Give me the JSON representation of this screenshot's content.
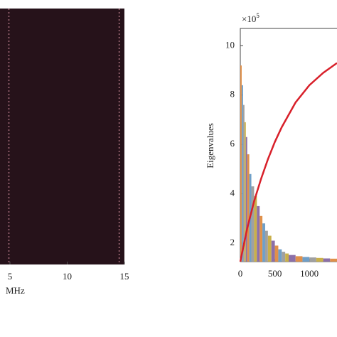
{
  "chart_data": [
    {
      "type": "image",
      "xlabel": "MHz",
      "xlim": [
        4.13,
        15
      ],
      "xticks": [
        5,
        10,
        15
      ],
      "background": "#26121a",
      "line_color": "#8a5a66",
      "bright_lines": [
        4.9,
        14.55
      ]
    },
    {
      "type": "bar",
      "ylabel": "Eigenvalues",
      "y_scale_label": "×10",
      "y_scale_exponent": "5",
      "xlim": [
        0,
        1400
      ],
      "ylim": [
        1.25,
        10.7
      ],
      "xticks": [
        0,
        500,
        1000
      ],
      "yticks": [
        2,
        4,
        6,
        8,
        10
      ],
      "colors": [
        "#e0904a",
        "#6f9fc8",
        "#a0a0a0",
        "#c9b04a",
        "#8c6fa8"
      ],
      "x": [
        0,
        20,
        40,
        60,
        80,
        100,
        130,
        160,
        200,
        240,
        280,
        320,
        360,
        400,
        450,
        500,
        550,
        600,
        650,
        700,
        800,
        900,
        1000,
        1100,
        1200,
        1300,
        1400
      ],
      "values": [
        9.2,
        8.4,
        7.6,
        6.9,
        6.3,
        5.6,
        4.8,
        4.3,
        3.9,
        3.5,
        3.1,
        2.8,
        2.5,
        2.3,
        2.1,
        1.9,
        1.75,
        1.65,
        1.58,
        1.52,
        1.47,
        1.44,
        1.42,
        1.4,
        1.38,
        1.37,
        1.36
      ],
      "line": {
        "color": "#d8202a",
        "x": [
          0,
          100,
          200,
          300,
          400,
          500,
          600,
          800,
          1000,
          1200,
          1400
        ],
        "values": [
          1.25,
          2.6,
          3.7,
          4.6,
          5.4,
          6.1,
          6.7,
          7.7,
          8.4,
          8.9,
          9.3
        ]
      }
    }
  ]
}
